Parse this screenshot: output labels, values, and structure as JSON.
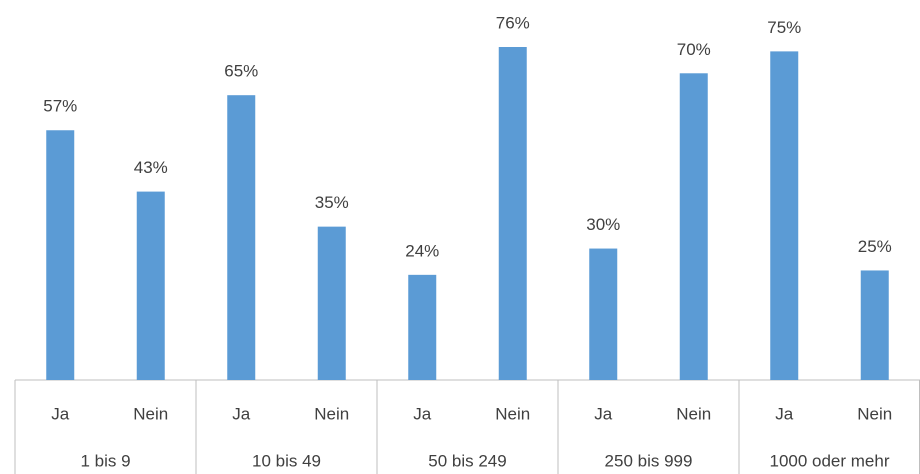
{
  "chart_data": {
    "type": "bar",
    "categories": [
      "Ja",
      "Nein",
      "Ja",
      "Nein",
      "Ja",
      "Nein",
      "Ja",
      "Nein",
      "Ja",
      "Nein"
    ],
    "groups": [
      "1 bis 9",
      "10 bis 49",
      "50 bis 249",
      "250 bis 999",
      "1000 oder mehr"
    ],
    "values": [
      57,
      43,
      65,
      35,
      24,
      76,
      30,
      70,
      75,
      25
    ],
    "value_labels": [
      "57%",
      "43%",
      "65%",
      "35%",
      "24%",
      "76%",
      "30%",
      "70%",
      "75%",
      "25%"
    ],
    "color": "#5b9bd5"
  }
}
